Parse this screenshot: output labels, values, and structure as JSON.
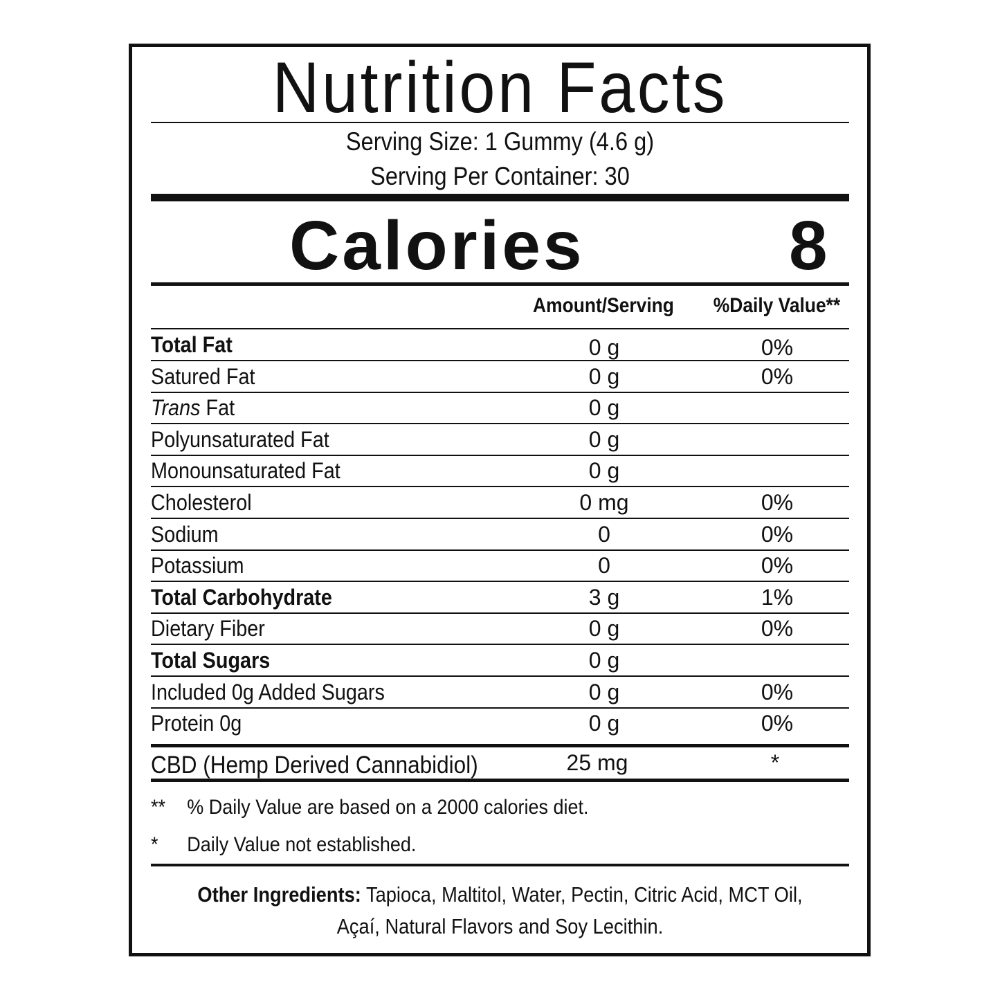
{
  "title": "Nutrition Facts",
  "serving_size": "Serving Size: 1 Gummy (4.6 g)",
  "servings_per_container": "Serving Per Container: 30",
  "calories": {
    "label": "Calories",
    "value": "8"
  },
  "headers": {
    "amount": "Amount/Serving",
    "daily_value": "%Daily Value**"
  },
  "rows": [
    {
      "name": "Total Fat",
      "amount": "0 g",
      "dv": "0%"
    },
    {
      "name": "Satured Fat",
      "amount": "0 g",
      "dv": "0%"
    },
    {
      "name_italic": "Trans",
      "name": " Fat",
      "amount": "0 g",
      "dv": ""
    },
    {
      "name": "Polyunsaturated Fat",
      "amount": "0 g",
      "dv": ""
    },
    {
      "name": "Monounsaturated Fat",
      "amount": "0 g",
      "dv": ""
    },
    {
      "name": "Cholesterol",
      "amount": "0 mg",
      "dv": "0%"
    },
    {
      "name": "Sodium",
      "amount": "0",
      "dv": "0%"
    },
    {
      "name": "Potassium",
      "amount": "0",
      "dv": "0%"
    },
    {
      "name": "Total Carbohydrate",
      "amount": "3 g",
      "dv": "1%"
    },
    {
      "name": "Dietary Fiber",
      "amount": "0 g",
      "dv": "0%"
    },
    {
      "name": "Total Sugars",
      "amount": "0 g",
      "dv": ""
    },
    {
      "name": "Included 0g Added Sugars",
      "amount": "0 g",
      "dv": "0%"
    },
    {
      "name": "Protein 0g",
      "amount": "0 g",
      "dv": "0%"
    }
  ],
  "cbd": {
    "name": "CBD (Hemp Derived Cannabidiol)",
    "amount": "25 mg",
    "dv": "*"
  },
  "footnotes": [
    {
      "mark": "**",
      "text": "% Daily Value are based on a 2000 calories diet."
    },
    {
      "mark": "*",
      "text": "Daily Value not established."
    }
  ],
  "ingredients": {
    "label": "Other Ingredients:",
    "line1": " Tapioca, Maltitol, Water, Pectin, Citric Acid, MCT Oil,",
    "line2": "Açaí, Natural Flavors and Soy Lecithin."
  }
}
